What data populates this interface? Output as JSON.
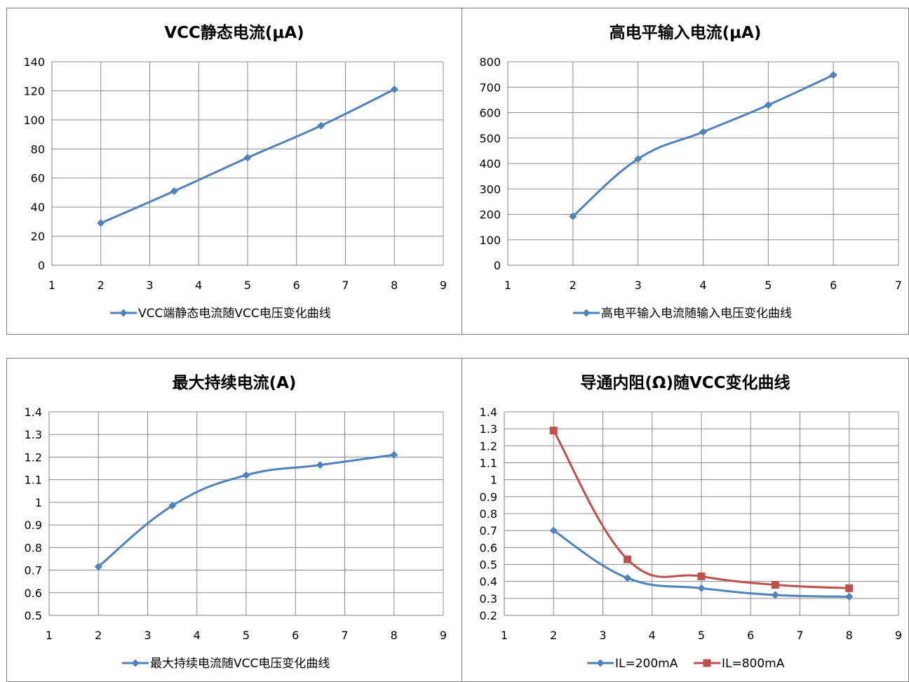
{
  "chart_data": [
    {
      "type": "line",
      "title": "VCC静态电流(μA)",
      "xlim": [
        1,
        9
      ],
      "ylim": [
        0,
        140
      ],
      "xticks": [
        "1",
        "2",
        "3",
        "4",
        "5",
        "6",
        "7",
        "8",
        "9"
      ],
      "yticks": [
        "0",
        "20",
        "40",
        "60",
        "80",
        "100",
        "120",
        "140"
      ],
      "grid": true,
      "legend_position": "bottom",
      "series": [
        {
          "name": "VCC端静态电流随VCC电压变化曲线",
          "color": "#4f81bd",
          "marker": "diamond",
          "x": [
            2,
            3.5,
            5,
            6.5,
            8
          ],
          "y": [
            29,
            51,
            74,
            96,
            121
          ]
        }
      ]
    },
    {
      "type": "line",
      "title": "高电平输入电流(μA)",
      "xlim": [
        1,
        7
      ],
      "ylim": [
        0,
        800
      ],
      "xticks": [
        "1",
        "2",
        "3",
        "4",
        "5",
        "6",
        "7"
      ],
      "yticks": [
        "0",
        "100",
        "200",
        "300",
        "400",
        "500",
        "600",
        "700",
        "800"
      ],
      "grid": true,
      "legend_position": "bottom",
      "series": [
        {
          "name": "高电平输入电流随输入电压变化曲线",
          "color": "#4f81bd",
          "marker": "diamond",
          "x": [
            2,
            3,
            4,
            5,
            6
          ],
          "y": [
            192,
            418,
            524,
            630,
            748
          ]
        }
      ]
    },
    {
      "type": "line",
      "title": "最大持续电流(A)",
      "xlim": [
        1,
        9
      ],
      "ylim": [
        0.5,
        1.4
      ],
      "xticks": [
        "1",
        "2",
        "3",
        "4",
        "5",
        "6",
        "7",
        "8",
        "9"
      ],
      "yticks": [
        "0.5",
        "0.6",
        "0.7",
        "0.8",
        "0.9",
        "1",
        "1.1",
        "1.2",
        "1.3",
        "1.4"
      ],
      "grid": true,
      "legend_position": "bottom",
      "series": [
        {
          "name": "最大持续电流随VCC电压变化曲线",
          "color": "#4f81bd",
          "marker": "diamond",
          "x": [
            2,
            3.5,
            5,
            6.5,
            8
          ],
          "y": [
            0.715,
            0.985,
            1.12,
            1.165,
            1.21
          ]
        }
      ]
    },
    {
      "type": "line",
      "title": "导通内阻(Ω)随VCC变化曲线",
      "xlim": [
        1,
        9
      ],
      "ylim": [
        0.2,
        1.4
      ],
      "xticks": [
        "1",
        "2",
        "3",
        "4",
        "5",
        "6",
        "7",
        "8",
        "9"
      ],
      "yticks": [
        "0.2",
        "0.3",
        "0.4",
        "0.5",
        "0.6",
        "0.7",
        "0.8",
        "0.9",
        "1",
        "1.1",
        "1.2",
        "1.3",
        "1.4"
      ],
      "grid": true,
      "legend_position": "bottom",
      "series": [
        {
          "name": "IL=200mA",
          "color": "#4f81bd",
          "marker": "diamond",
          "x": [
            2,
            3.5,
            5,
            6.5,
            8
          ],
          "y": [
            0.7,
            0.42,
            0.36,
            0.32,
            0.31
          ]
        },
        {
          "name": "IL=800mA",
          "color": "#c0504d",
          "marker": "square",
          "x": [
            2,
            3.5,
            5,
            6.5,
            8
          ],
          "y": [
            1.29,
            0.53,
            0.43,
            0.38,
            0.36
          ]
        }
      ]
    }
  ]
}
